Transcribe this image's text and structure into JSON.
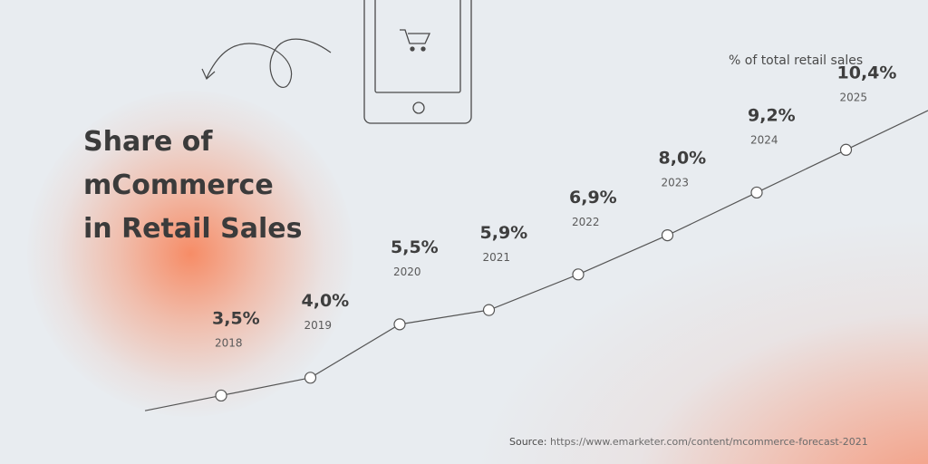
{
  "title_lines": [
    "Share of",
    "mCommerce",
    "in Retail Sales"
  ],
  "subtitle": "% of total retail sales",
  "source": {
    "label": "Source:",
    "url": "https://www.emarketer.com/content/mcommerce-forecast-2021"
  },
  "icons": [
    "phone-icon",
    "shopping-cart-icon",
    "curly-arrow-icon"
  ],
  "colors": {
    "accent": "#f7875f",
    "background": "#e8ecf0",
    "text": "#3e3e3e",
    "line": "#555555"
  },
  "chart_data": {
    "type": "line",
    "title": "Share of mCommerce in Retail Sales",
    "ylabel": "% of total retail sales",
    "x": [
      "2018",
      "2019",
      "2020",
      "2021",
      "2022",
      "2023",
      "2024",
      "2025"
    ],
    "values": [
      3.5,
      4.0,
      5.5,
      5.9,
      6.9,
      8.0,
      9.2,
      10.4
    ],
    "value_labels": [
      "3,5%",
      "4,0%",
      "5,5%",
      "5,9%",
      "6,9%",
      "8,0%",
      "9,2%",
      "10,4%"
    ],
    "grid": false,
    "legend": "none"
  }
}
